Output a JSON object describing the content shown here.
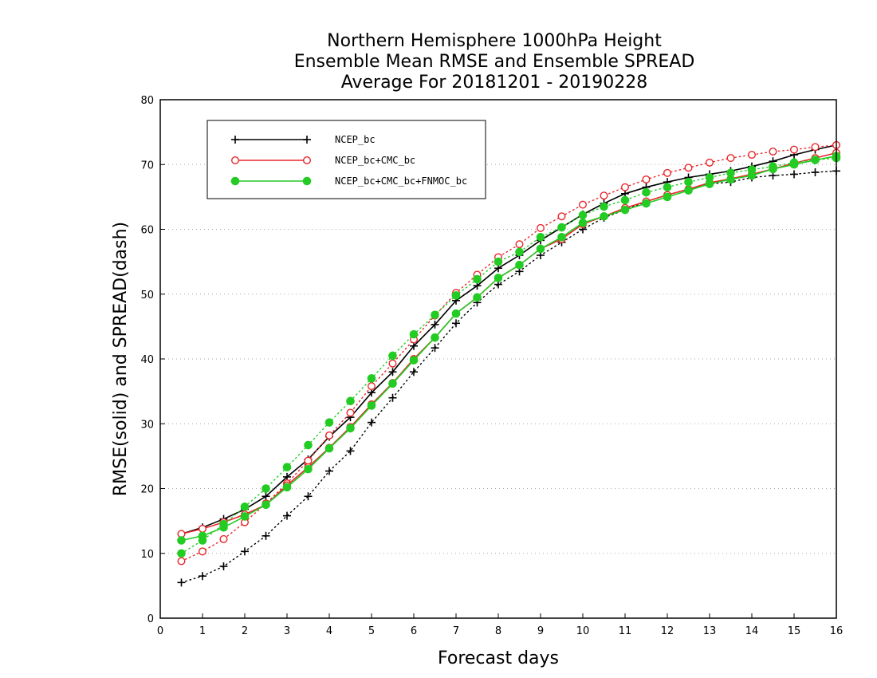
{
  "chart_data": {
    "type": "line",
    "title": [
      "Northern Hemisphere 1000hPa Height",
      "Ensemble Mean RMSE and Ensemble SPREAD",
      "Average For 20181201 - 20190228"
    ],
    "xlabel": "Forecast days",
    "ylabel": "RMSE(solid) and SPREAD(dash)",
    "xlim": [
      0,
      16
    ],
    "ylim": [
      0,
      80
    ],
    "xticks": [
      0,
      1,
      2,
      3,
      4,
      5,
      6,
      7,
      8,
      9,
      10,
      11,
      12,
      13,
      14,
      15,
      16
    ],
    "yticks": [
      0,
      10,
      20,
      30,
      40,
      50,
      60,
      70,
      80
    ],
    "grid": true,
    "legend_position": "top-left",
    "x": [
      0.5,
      1,
      1.5,
      2,
      2.5,
      3,
      3.5,
      4,
      4.5,
      5,
      5.5,
      6,
      6.5,
      7,
      7.5,
      8,
      8.5,
      9,
      9.5,
      10,
      10.5,
      11,
      11.5,
      12,
      12.5,
      13,
      13.5,
      14,
      14.5,
      15,
      15.5,
      16
    ],
    "series": [
      {
        "name": "NCEP_bc",
        "color": "#000000",
        "marker": "plus",
        "rmse": [
          13.0,
          14.0,
          15.3,
          16.8,
          18.8,
          21.8,
          24.5,
          28.0,
          31.0,
          34.8,
          38.0,
          42.0,
          45.3,
          49.0,
          51.3,
          54.0,
          56.0,
          58.3,
          60.3,
          62.3,
          64.0,
          65.5,
          66.5,
          67.3,
          68.0,
          68.5,
          69.0,
          69.7,
          70.5,
          71.5,
          72.3,
          73.0
        ],
        "spread": [
          5.5,
          6.5,
          8.0,
          10.3,
          12.7,
          15.8,
          18.8,
          22.7,
          25.8,
          30.2,
          34.0,
          38.0,
          41.7,
          45.5,
          48.7,
          51.5,
          53.5,
          56.0,
          58.0,
          60.0,
          61.8,
          63.0,
          64.3,
          65.3,
          66.2,
          67.0,
          67.3,
          68.0,
          68.3,
          68.5,
          68.8,
          69.0
        ]
      },
      {
        "name": "NCEP_bc+CMC_bc",
        "color": "#e8262a",
        "marker": "open-circle",
        "rmse": [
          13.0,
          13.8,
          14.8,
          16.0,
          17.5,
          20.5,
          23.3,
          26.3,
          29.5,
          33.0,
          36.3,
          40.0,
          43.3,
          47.0,
          49.5,
          52.5,
          54.5,
          57.0,
          58.5,
          60.8,
          62.0,
          63.3,
          64.3,
          65.3,
          66.2,
          67.2,
          67.8,
          68.5,
          69.3,
          70.2,
          71.0,
          71.8
        ],
        "spread": [
          8.8,
          10.3,
          12.2,
          14.8,
          17.7,
          20.8,
          24.3,
          28.2,
          31.7,
          35.8,
          39.3,
          43.0,
          46.7,
          50.2,
          53.0,
          55.7,
          57.7,
          60.2,
          62.0,
          63.8,
          65.2,
          66.5,
          67.7,
          68.7,
          69.5,
          70.3,
          71.0,
          71.5,
          72.0,
          72.3,
          72.7,
          73.0
        ]
      },
      {
        "name": "NCEP_bc+CMC_bc+FNMOC_bc",
        "color": "#22cc22",
        "marker": "filled-circle",
        "rmse": [
          12.0,
          12.7,
          14.0,
          15.7,
          17.5,
          20.2,
          23.0,
          26.2,
          29.3,
          32.8,
          36.2,
          39.8,
          43.3,
          47.0,
          49.5,
          52.5,
          54.5,
          57.0,
          58.8,
          61.0,
          62.0,
          63.0,
          64.0,
          65.0,
          66.0,
          67.0,
          67.7,
          68.3,
          69.3,
          70.0,
          70.7,
          71.3
        ],
        "spread": [
          10.0,
          12.0,
          14.5,
          17.2,
          20.0,
          23.3,
          26.7,
          30.2,
          33.5,
          37.0,
          40.5,
          43.8,
          46.8,
          49.8,
          52.3,
          55.0,
          56.5,
          58.8,
          60.3,
          62.2,
          63.5,
          64.5,
          65.7,
          66.5,
          67.3,
          68.0,
          68.7,
          69.2,
          69.7,
          70.3,
          70.7,
          71.0
        ]
      }
    ]
  }
}
